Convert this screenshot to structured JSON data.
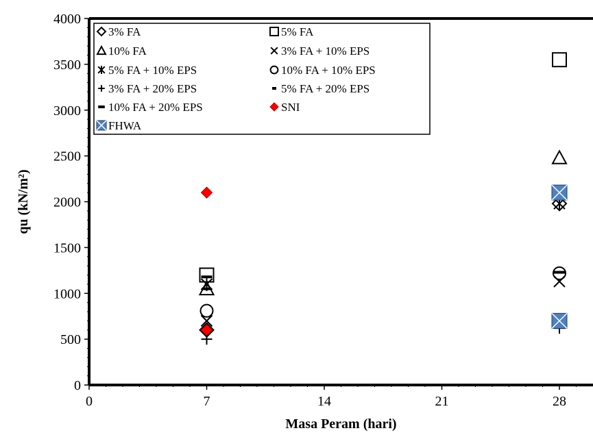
{
  "chart_data": {
    "type": "scatter",
    "xlabel": "Masa Peram (hari)",
    "ylabel": "qu (kN/m²)",
    "xlim": [
      0,
      30
    ],
    "ylim": [
      0,
      4000
    ],
    "xticks": [
      0,
      7,
      14,
      21,
      28
    ],
    "yticks": [
      0,
      500,
      1000,
      1500,
      2000,
      2500,
      3000,
      3500,
      4000
    ],
    "grid": false,
    "legend_position": "top-left",
    "series": [
      {
        "name": "3% FA",
        "marker": "diamond-open",
        "color": "#000000",
        "x": [
          7,
          28
        ],
        "y": [
          600,
          1980
        ]
      },
      {
        "name": "5% FA",
        "marker": "square-open",
        "color": "#000000",
        "x": [
          7,
          28
        ],
        "y": [
          1200,
          3550
        ]
      },
      {
        "name": "10% FA",
        "marker": "triangle-open",
        "color": "#000000",
        "x": [
          7,
          28
        ],
        "y": [
          1050,
          2480
        ]
      },
      {
        "name": "3% FA + 10% EPS",
        "marker": "x",
        "color": "#000000",
        "x": [
          7,
          28
        ],
        "y": [
          700,
          1130
        ]
      },
      {
        "name": "5% FA + 10% EPS",
        "marker": "asterisk",
        "color": "#000000",
        "x": [
          7,
          28
        ],
        "y": [
          1100,
          1980
        ]
      },
      {
        "name": "10% FA + 10% EPS",
        "marker": "circle-open",
        "color": "#000000",
        "x": [
          7,
          28
        ],
        "y": [
          810,
          1220
        ]
      },
      {
        "name": "3% FA + 20% EPS",
        "marker": "plus",
        "color": "#000000",
        "x": [
          7,
          28
        ],
        "y": [
          500,
          620
        ]
      },
      {
        "name": "5% FA + 20% EPS",
        "marker": "short-dash",
        "color": "#000000",
        "x": [
          7,
          28
        ],
        "y": [
          1050,
          1230
        ]
      },
      {
        "name": "10% FA + 20% EPS",
        "marker": "long-dash",
        "color": "#000000",
        "x": [
          7,
          28
        ],
        "y": [
          1180,
          1230
        ]
      },
      {
        "name": "SNI",
        "marker": "diamond-filled",
        "color": "#ff0000",
        "x": [
          7,
          7
        ],
        "y": [
          2100,
          600
        ]
      },
      {
        "name": "FHWA",
        "marker": "square-x-filled",
        "color": "#4f81bd",
        "x": [
          28,
          28
        ],
        "y": [
          2100,
          700
        ]
      }
    ]
  }
}
